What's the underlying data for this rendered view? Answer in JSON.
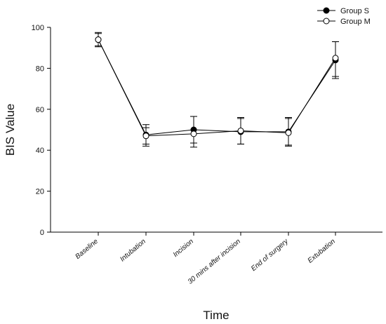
{
  "chart_data": {
    "type": "line",
    "title": "",
    "xlabel": "Time",
    "ylabel": "BIS Value",
    "categories": [
      "Baseline",
      "Intubation",
      "Incision",
      "30 mins after incision",
      "End of surgery",
      "Extubation"
    ],
    "ylim": [
      0,
      100
    ],
    "yticks": [
      0,
      20,
      40,
      60,
      80,
      100
    ],
    "grid": false,
    "legend_position": "top-right",
    "series": [
      {
        "name": "Group S",
        "marker": "filled-circle",
        "color": "#000000",
        "values": [
          94,
          47.5,
          50,
          49,
          49,
          84
        ],
        "error_upper": [
          97,
          51,
          56.5,
          55.5,
          55.5,
          93
        ],
        "error_lower": [
          91,
          42,
          43.5,
          43,
          42.5,
          75
        ]
      },
      {
        "name": "Group M",
        "marker": "open-circle",
        "color": "#000000",
        "values": [
          94,
          47,
          48,
          49.5,
          48.5,
          85
        ],
        "error_upper": [
          97.5,
          52.5,
          56.5,
          56,
          56,
          93
        ],
        "error_lower": [
          90.5,
          43,
          41.5,
          43,
          42,
          76
        ]
      }
    ]
  }
}
